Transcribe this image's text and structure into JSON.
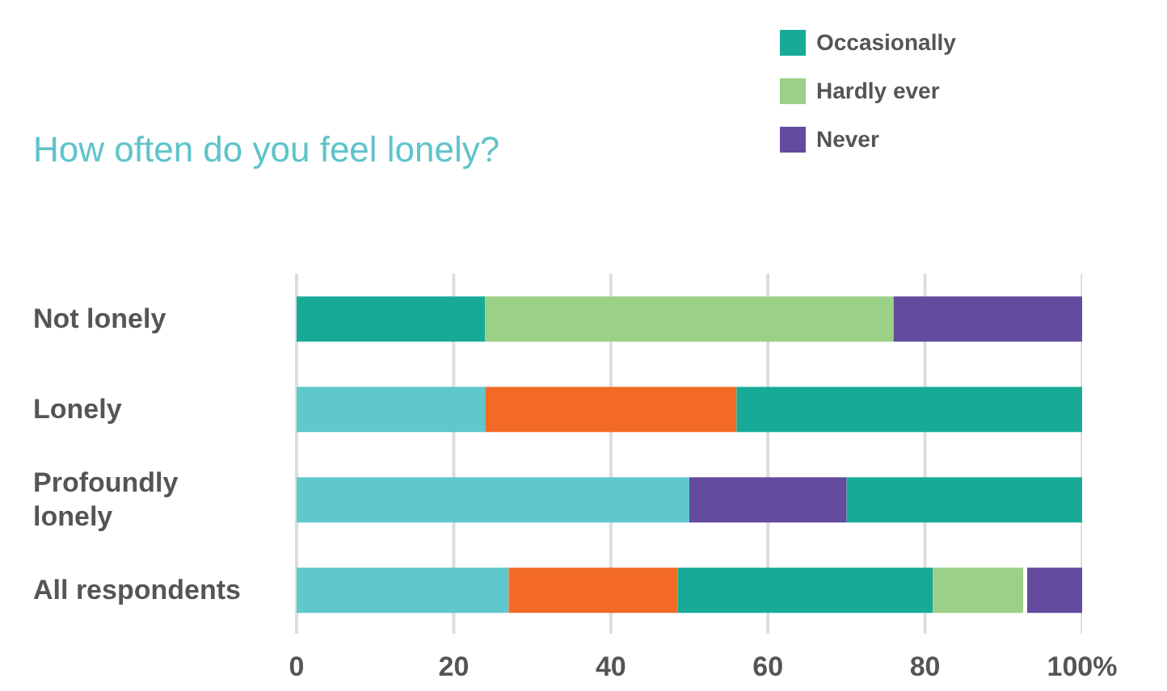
{
  "chart_data": {
    "type": "bar",
    "orientation": "horizontal",
    "title": "How often do you feel lonely?",
    "categories": [
      "Not lonely",
      "Lonely",
      "Profoundly lonely",
      "All respondents"
    ],
    "series": [
      {
        "color": "#5ec8cc",
        "values": [
          null,
          24,
          50,
          27
        ],
        "base": [
          null,
          0,
          0,
          0
        ]
      },
      {
        "color": "#f26a26",
        "values": [
          null,
          32,
          null,
          21.5
        ],
        "base": [
          null,
          24,
          null,
          27
        ]
      },
      {
        "name": "Occasionally",
        "color": "#17ab97",
        "values": [
          24,
          44,
          30,
          32.5
        ],
        "base": [
          0,
          56,
          70,
          48.5
        ]
      },
      {
        "name": "Hardly ever",
        "color": "#9bd087",
        "values": [
          52,
          null,
          null,
          11.5
        ],
        "base": [
          24,
          null,
          null,
          81
        ]
      },
      {
        "name": "Never",
        "color": "#634ba0",
        "values": [
          24,
          null,
          20,
          7
        ],
        "base": [
          76,
          null,
          50,
          93
        ]
      }
    ],
    "xlim": [
      0,
      100
    ],
    "xticks": [
      0,
      20,
      40,
      60,
      80,
      {
        "value": 100,
        "label": "100%"
      }
    ],
    "grid": "x",
    "legend": "top right"
  }
}
